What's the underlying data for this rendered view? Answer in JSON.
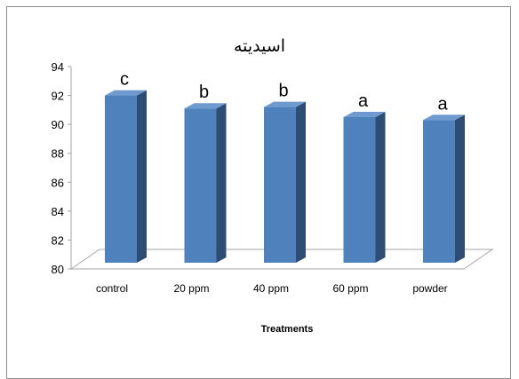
{
  "chart_data": {
    "type": "bar",
    "title": "اسیدیته",
    "xlabel": "Treatments",
    "ylabel": "",
    "categories": [
      "control",
      "20 ppm",
      "40 ppm",
      "60 ppm",
      "powder"
    ],
    "values": [
      92.0,
      91.1,
      91.2,
      90.5,
      90.3
    ],
    "significance_letters": [
      "c",
      "b",
      "b",
      "a",
      "a"
    ],
    "ylim": [
      80,
      94
    ],
    "yticks": [
      "80",
      "82",
      "84",
      "86",
      "88",
      "90",
      "92",
      "94"
    ],
    "grid": false,
    "legend": "none",
    "style": "3d-column",
    "colors": {
      "bar_front": "#4F81BD",
      "bar_side": "#2E4D75",
      "bar_top": "#6F9AD0",
      "floor_line": "#a6a6a6",
      "frame": "#8c8c8c"
    }
  }
}
